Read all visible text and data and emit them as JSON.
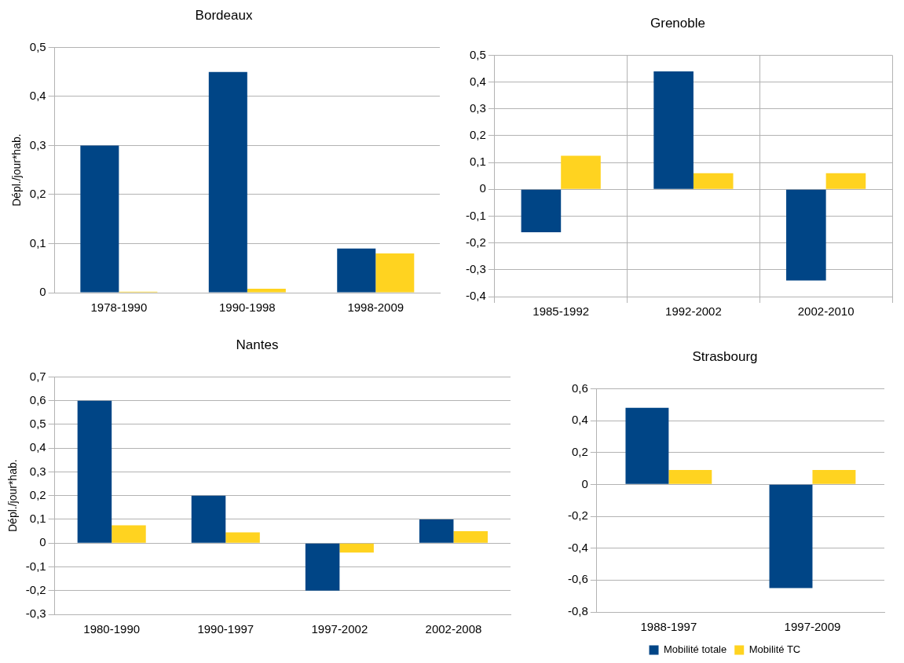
{
  "chart_data": [
    {
      "type": "bar",
      "title": "Bordeaux",
      "ylabel": "Dépl./jour*hab.",
      "categories": [
        "1978-1990",
        "1990-1998",
        "1998-2009"
      ],
      "series": [
        {
          "color": "#004586",
          "values": [
            0.3,
            0.45,
            0.09
          ]
        },
        {
          "color": "#ffd320",
          "values": [
            0.002,
            0.008,
            0.08
          ]
        }
      ],
      "ylim": [
        0,
        0.5
      ],
      "yticks": [
        {
          "value": 0,
          "label": "0"
        },
        {
          "value": 0.1,
          "label": "0,1"
        },
        {
          "value": 0.2,
          "label": "0,2"
        },
        {
          "value": 0.3,
          "label": "0,3"
        },
        {
          "value": 0.4,
          "label": "0,4"
        },
        {
          "value": 0.5,
          "label": "0,5"
        }
      ],
      "grid": "y",
      "legend": false
    },
    {
      "type": "bar",
      "title": "Grenoble",
      "categories": [
        "1985-1992",
        "1992-2002",
        "2002-2010"
      ],
      "series": [
        {
          "color": "#004586",
          "values": [
            -0.16,
            0.44,
            -0.34
          ]
        },
        {
          "color": "#ffd320",
          "values": [
            0.125,
            0.06,
            0.06
          ]
        }
      ],
      "ylim": [
        -0.4,
        0.5
      ],
      "yticks": [
        {
          "value": -0.4,
          "label": "-0,4"
        },
        {
          "value": -0.3,
          "label": "-0,3"
        },
        {
          "value": -0.2,
          "label": "-0,2"
        },
        {
          "value": -0.1,
          "label": "-0,1"
        },
        {
          "value": 0,
          "label": "0"
        },
        {
          "value": 0.1,
          "label": "0,1"
        },
        {
          "value": 0.2,
          "label": "0,2"
        },
        {
          "value": 0.3,
          "label": "0,3"
        },
        {
          "value": 0.4,
          "label": "0,4"
        },
        {
          "value": 0.5,
          "label": "0,5"
        }
      ],
      "grid": true,
      "legend": false
    },
    {
      "type": "bar",
      "title": "Nantes",
      "ylabel": "Dépl./jour*hab.",
      "categories": [
        "1980-1990",
        "1990-1997",
        "1997-2002",
        "2002-2008"
      ],
      "series": [
        {
          "color": "#004586",
          "values": [
            0.6,
            0.2,
            -0.2,
            0.1
          ]
        },
        {
          "color": "#ffd320",
          "values": [
            0.075,
            0.045,
            -0.04,
            0.05
          ]
        }
      ],
      "ylim": [
        -0.3,
        0.7
      ],
      "yticks": [
        {
          "value": -0.3,
          "label": "-0,3"
        },
        {
          "value": -0.2,
          "label": "-0,2"
        },
        {
          "value": -0.1,
          "label": "-0,1"
        },
        {
          "value": 0,
          "label": "0"
        },
        {
          "value": 0.1,
          "label": "0,1"
        },
        {
          "value": 0.2,
          "label": "0,2"
        },
        {
          "value": 0.3,
          "label": "0,3"
        },
        {
          "value": 0.4,
          "label": "0,4"
        },
        {
          "value": 0.5,
          "label": "0,5"
        },
        {
          "value": 0.6,
          "label": "0,6"
        },
        {
          "value": 0.7,
          "label": "0,7"
        }
      ],
      "grid": "y",
      "legend": false
    },
    {
      "type": "bar",
      "title": "Strasbourg",
      "categories": [
        "1988-1997",
        "1997-2009"
      ],
      "series": [
        {
          "name": "Mobilité totale",
          "color": "#004586",
          "values": [
            0.48,
            -0.65
          ]
        },
        {
          "name": "Mobilité TC",
          "color": "#ffd320",
          "values": [
            0.09,
            0.09
          ]
        }
      ],
      "ylim": [
        -0.8,
        0.6
      ],
      "yticks": [
        {
          "value": -0.8,
          "label": "-0,8"
        },
        {
          "value": -0.6,
          "label": "-0,6"
        },
        {
          "value": -0.4,
          "label": "-0,4"
        },
        {
          "value": -0.2,
          "label": "-0,2"
        },
        {
          "value": 0,
          "label": "0"
        },
        {
          "value": 0.2,
          "label": "0,2"
        },
        {
          "value": 0.4,
          "label": "0,4"
        },
        {
          "value": 0.6,
          "label": "0,6"
        }
      ],
      "grid": "y",
      "legend": "bottom"
    }
  ]
}
